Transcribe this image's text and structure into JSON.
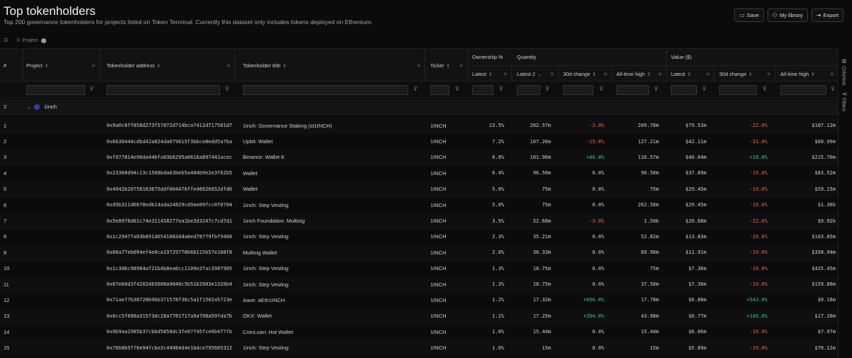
{
  "page": {
    "title": "Top tokenholders",
    "subtitle": "Top 200 governance tokenholders for projects listed on Token Terminal. Currently this dataset only includes tokens deployed on Ethereum."
  },
  "actions": {
    "save": "Save",
    "library": "My library",
    "export": "Export"
  },
  "grouping": {
    "chip": "Project"
  },
  "columns": {
    "index": "#",
    "project": "Project",
    "address": "Tokenholder address",
    "title": "Tokenholder title",
    "ticker": "Ticker",
    "ownership_group": "Ownership %",
    "quantity_group": "Quantity",
    "value_group": "Value ($)",
    "own_latest": "Latest",
    "qty_latest": "Latest 2",
    "qty_30d": "30d change",
    "qty_ath": "All-time high",
    "val_latest": "Latest",
    "val_30d": "30d change",
    "val_ath": "All-time high"
  },
  "group": {
    "count": "2",
    "name": "1inch"
  },
  "side_tabs": {
    "columns": "Columns",
    "filters": "Filters"
  },
  "rows": [
    {
      "n": "1",
      "addr": "0x9a0c8ff858d273f57072d714bca7411d717501d7",
      "title": "1inch: Governance Staking (st1INCH)",
      "ticker": "1INCH",
      "own": "13.5%",
      "qty": "202.57m",
      "qty30": "-3.0%",
      "qty30c": "neg",
      "qtyath": "209.70m",
      "val": "$79.53m",
      "val30": "-22.0%",
      "val30c": "neg",
      "valath": "$107.12m"
    },
    {
      "n": "2",
      "addr": "0x6630444cdbd42a024da079615f3bbce8edd5a7ba",
      "title": "Upbit: Wallet",
      "ticker": "1INCH",
      "own": "7.2%",
      "qty": "107.26m",
      "qty30": "-15.0%",
      "qty30c": "neg",
      "qtyath": "127.21m",
      "val": "$42.11m",
      "val30": "-31.0%",
      "val30c": "neg",
      "valath": "$60.99m"
    },
    {
      "n": "3",
      "addr": "0xf977814e90da44bfa03b6295a0616a897441acec",
      "title": "Binance: Wallet 8",
      "ticker": "1INCH",
      "own": "6.8%",
      "qty": "101.96m",
      "qty30": "+46.0%",
      "qty30c": "pos",
      "qtyath": "116.57m",
      "val": "$40.04m",
      "val30": "+18.0%",
      "val30c": "pos",
      "valath": "$215.70m"
    },
    {
      "n": "4",
      "addr": "0x23360d94c13c1508bda63beb5a404b9e2e3f62b5",
      "title": "Wallet",
      "ticker": "1INCH",
      "own": "6.4%",
      "qty": "96.50m",
      "qty30": "0.0%",
      "qty30c": "",
      "qtyath": "96.50m",
      "val": "$37.89m",
      "val30": "-19.0%",
      "val30c": "neg",
      "valath": "$83.52m"
    },
    {
      "n": "5",
      "addr": "0x4942b20750163675ddf004476ffe46626652dfd0",
      "title": "Wallet",
      "ticker": "1INCH",
      "own": "5.0%",
      "qty": "75m",
      "qty30": "0.0%",
      "qty30c": "",
      "qtyath": "75m",
      "val": "$29.45m",
      "val30": "-19.0%",
      "val30c": "neg",
      "valath": "$59.15m"
    },
    {
      "n": "6",
      "addr": "0xd9b311d6678edb14ada24829cd9ae09fcc0f0704",
      "title": "1inch: Step Vesting",
      "ticker": "1INCH",
      "own": "5.0%",
      "qty": "75m",
      "qty30": "0.0%",
      "qty30c": "",
      "qtyath": "262.50m",
      "val": "$29.45m",
      "val30": "-19.0%",
      "val30c": "neg",
      "valath": "$1.36b"
    },
    {
      "n": "7",
      "addr": "0x5e89f8d81c74e311458277ea1be3d3247c7cd7d1",
      "title": "1inch Foundation: Multisig",
      "ticker": "1INCH",
      "own": "3.5%",
      "qty": "52.68m",
      "qty30": "-3.0%",
      "qty30c": "neg",
      "qtyath": "1.50b",
      "val": "$20.68m",
      "val30": "-22.0%",
      "val30c": "neg",
      "valath": "$9.92b"
    },
    {
      "n": "8",
      "addr": "0x1c29477a03b891d65410834da0ed787f9fbf9468",
      "title": "1inch: Step Vesting",
      "ticker": "1INCH",
      "own": "2.3%",
      "qty": "35.21m",
      "qty30": "0.0%",
      "qty30c": "",
      "qtyath": "52.82m",
      "val": "$13.83m",
      "val30": "-19.0%",
      "val30c": "neg",
      "valath": "$103.85m"
    },
    {
      "n": "9",
      "addr": "0x06a77eb094ef4e0ca19729770b6b115b57e188f8",
      "title": "Multisig Wallet",
      "ticker": "1INCH",
      "own": "2.0%",
      "qty": "30.33m",
      "qty30": "0.0%",
      "qty30c": "",
      "qtyath": "89.90m",
      "val": "$11.91m",
      "val30": "-19.0%",
      "val30c": "neg",
      "valath": "$358.94m"
    },
    {
      "n": "10",
      "addr": "0x1c30bc98984af21b4b8ea6cc1109e2fac3987905",
      "title": "1inch: Step Vesting",
      "ticker": "1INCH",
      "own": "1.3%",
      "qty": "18.75m",
      "qty30": "0.0%",
      "qty30c": "",
      "qtyath": "75m",
      "val": "$7.36m",
      "val30": "-19.0%",
      "val30c": "neg",
      "valath": "$425.45m"
    },
    {
      "n": "11",
      "addr": "0x07eb0d3f42024b5608a9048c5b51b2903e1320b4",
      "title": "1inch: Step Vesting",
      "ticker": "1INCH",
      "own": "1.3%",
      "qty": "18.75m",
      "qty30": "0.0%",
      "qty30c": "",
      "qtyath": "37.50m",
      "val": "$7.36m",
      "val30": "-19.0%",
      "val30c": "neg",
      "valath": "$159.88m"
    },
    {
      "n": "12",
      "addr": "0x71aef7b30728b9bb371578f36c5a1f1502a5723e",
      "title": "Aave: aEth1INCH",
      "ticker": "1INCH",
      "own": "1.2%",
      "qty": "17.32m",
      "qty30": "+696.0%",
      "qty30c": "pos",
      "qtyath": "17.78m",
      "val": "$6.80m",
      "val30": "+543.0%",
      "val30c": "pos",
      "valath": "$9.18m"
    },
    {
      "n": "13",
      "addr": "0x6cc5f688a315f3dc28a7781717a9a798a59fda7b",
      "title": "OKX: Wallet",
      "ticker": "1INCH",
      "own": "1.1%",
      "qty": "17.25m",
      "qty30": "+204.0%",
      "qty30c": "pos",
      "qtyath": "43.98m",
      "val": "$6.77m",
      "val30": "+145.0%",
      "val30c": "pos",
      "valath": "$17.20m"
    },
    {
      "n": "14",
      "addr": "0x9b9aa2985b37cbbd5858dc3fe07f45fce6b477fb",
      "title": "CoinLoan: Hot Wallet",
      "ticker": "1INCH",
      "own": "1.0%",
      "qty": "15.44m",
      "qty30": "0.0%",
      "qty30c": "",
      "qtyath": "15.44m",
      "val": "$6.06m",
      "val30": "-19.0%",
      "val30c": "neg",
      "valath": "$7.97m"
    },
    {
      "n": "15",
      "addr": "0x76b8b5ff6e94fcbe3c44984d4e1bdce795665312",
      "title": "1inch: Step Vesting",
      "ticker": "1INCH",
      "own": "1.0%",
      "qty": "15m",
      "qty30": "0.0%",
      "qty30c": "",
      "qtyath": "15m",
      "val": "$5.89m",
      "val30": "-19.0%",
      "val30c": "neg",
      "valath": "$70.12m"
    }
  ]
}
